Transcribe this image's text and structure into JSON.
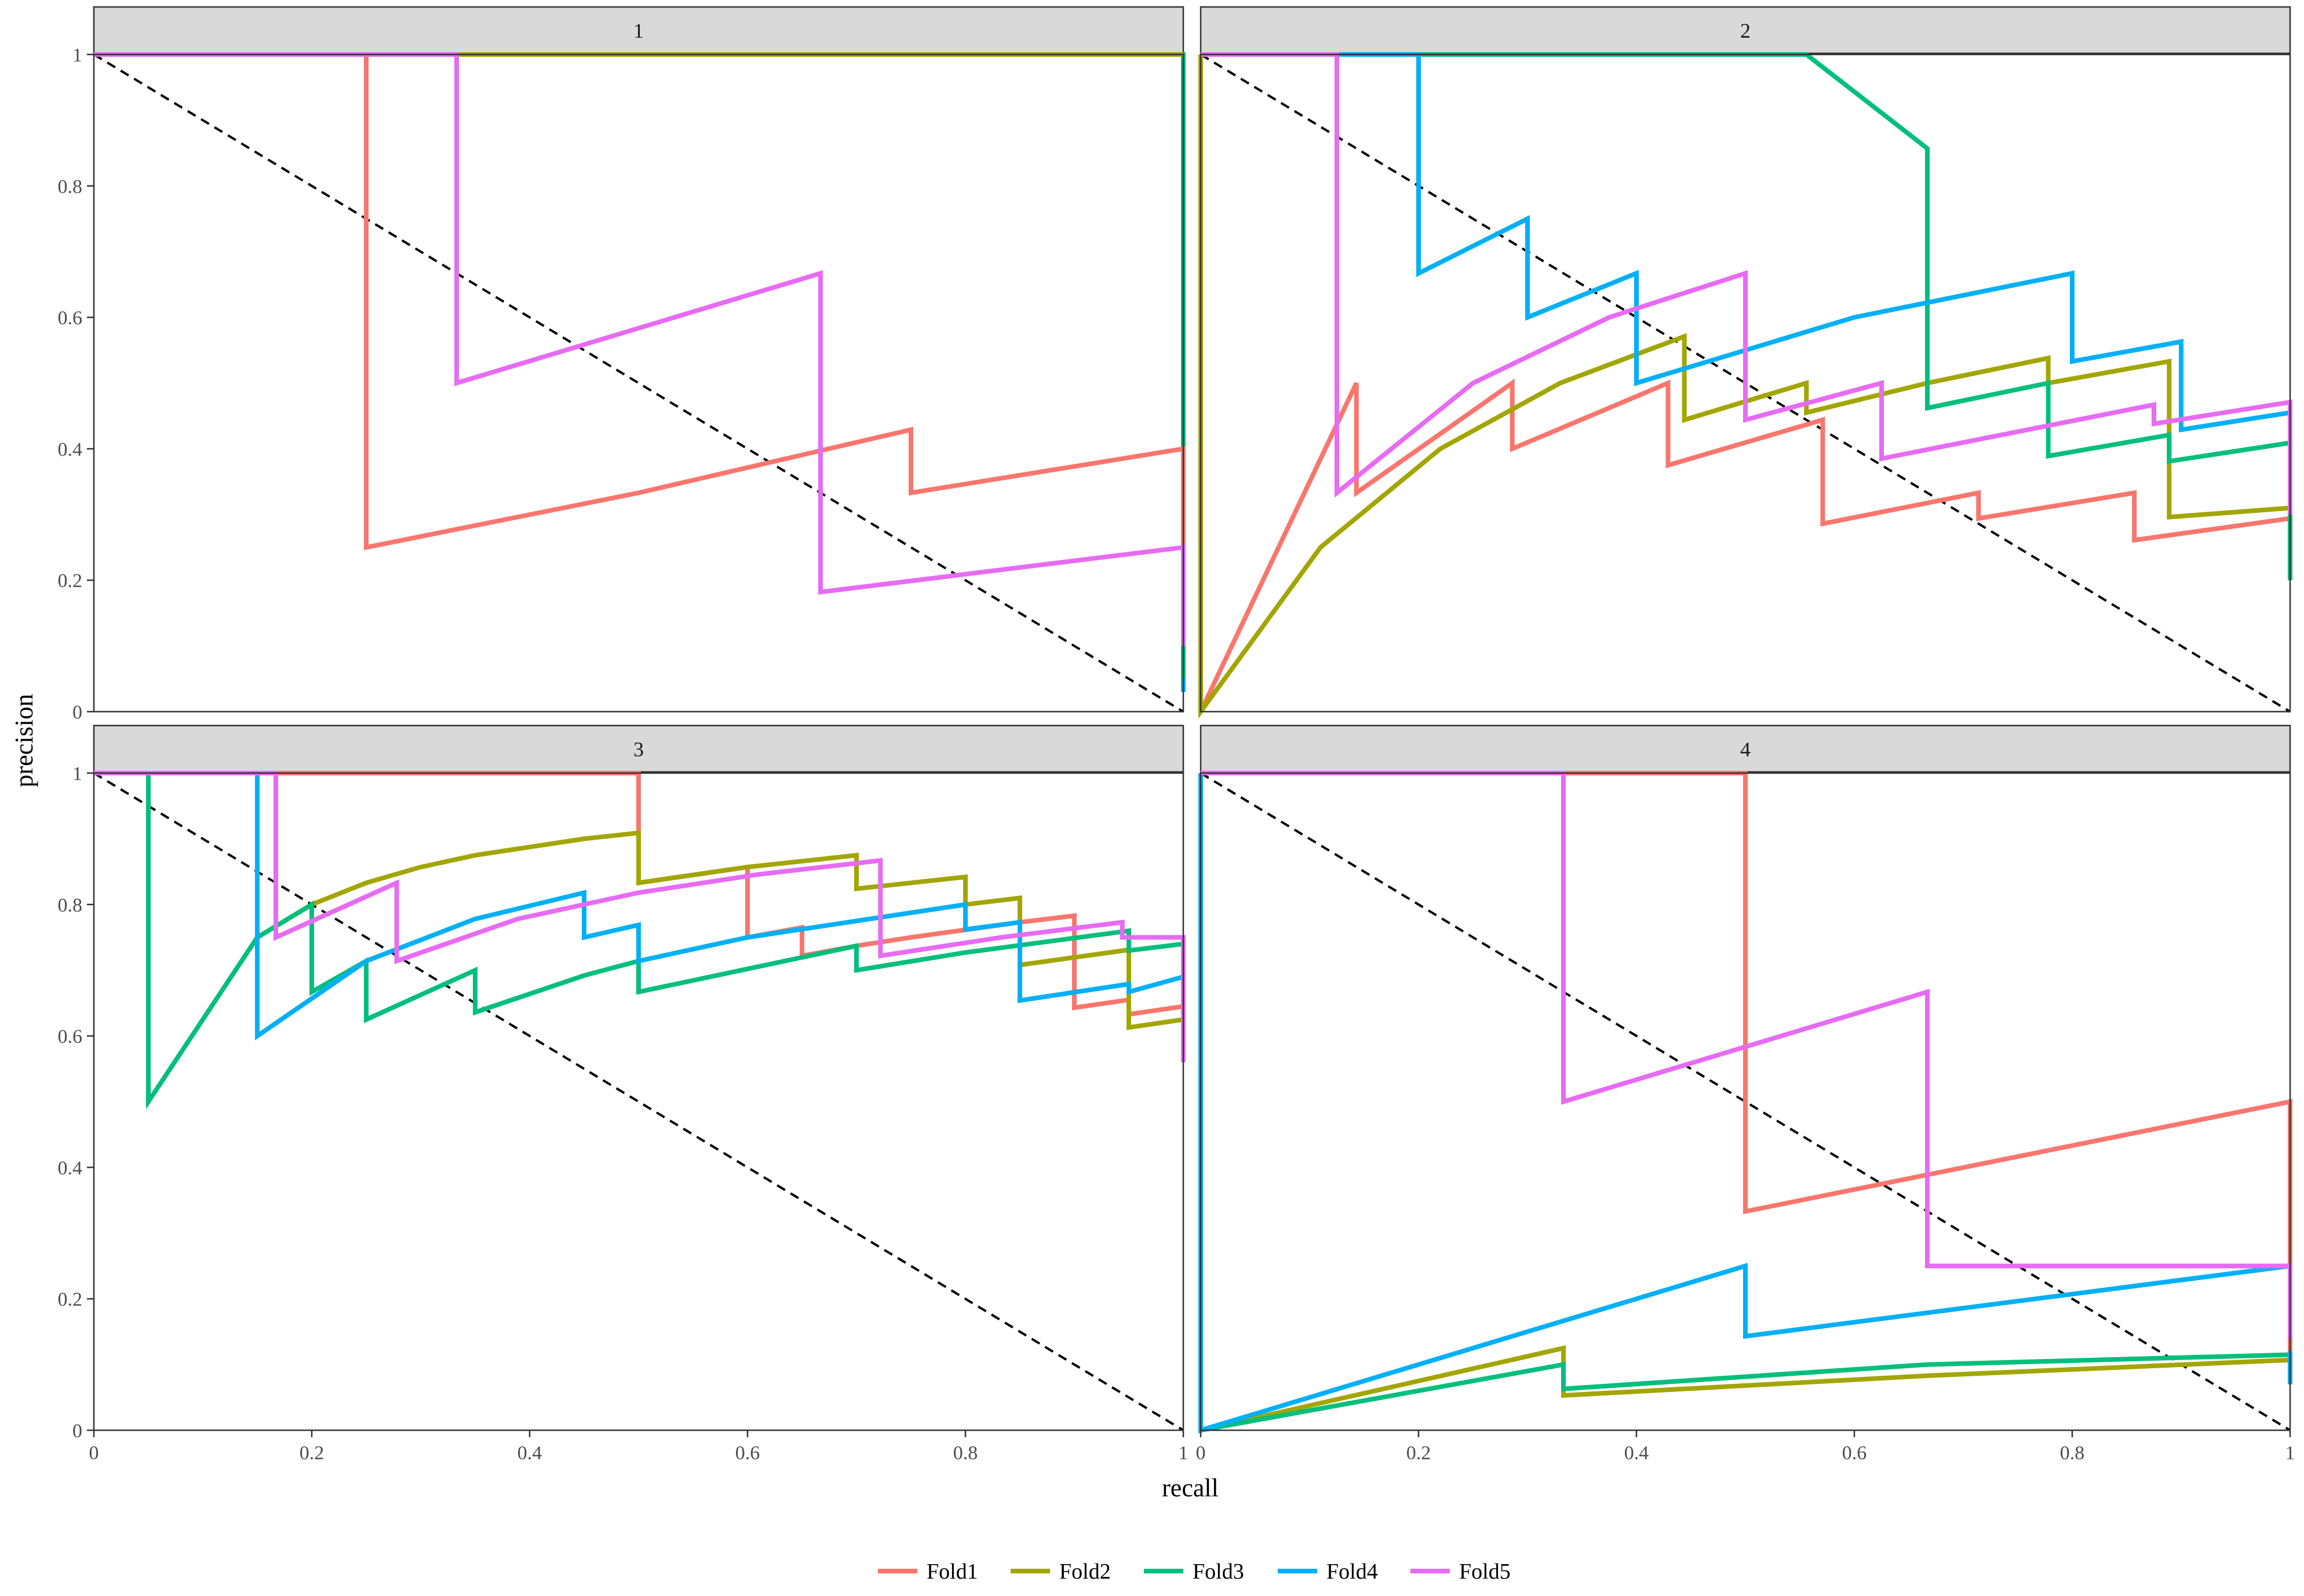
{
  "chart_data": {
    "type": "line",
    "xlabel": "recall",
    "ylabel": "precision",
    "xlim": [
      0,
      1
    ],
    "ylim": [
      0,
      1
    ],
    "x_ticks": [
      "0",
      "0.2",
      "0.4",
      "0.6",
      "0.8",
      "1"
    ],
    "y_ticks": [
      "0",
      "0.2",
      "0.4",
      "0.6",
      "0.8",
      "1"
    ],
    "grid": false,
    "legend_position": "bottom",
    "reference_line": {
      "style": "dashed",
      "color": "#000000",
      "points": [
        [
          0,
          1
        ],
        [
          1,
          0
        ]
      ]
    },
    "series_colors": {
      "Fold1": "#F8766D",
      "Fold2": "#A3A500",
      "Fold3": "#00BF7D",
      "Fold4": "#00B0F6",
      "Fold5": "#E76BF3"
    },
    "legend": [
      "Fold1",
      "Fold2",
      "Fold3",
      "Fold4",
      "Fold5"
    ],
    "panels": [
      {
        "strip": "1",
        "series": [
          {
            "name": "Fold4",
            "points": [
              [
                0,
                1
              ],
              [
                1,
                1
              ],
              [
                1,
                0.03
              ]
            ]
          },
          {
            "name": "Fold3",
            "points": [
              [
                0,
                1
              ],
              [
                1,
                1
              ],
              [
                1,
                0.05
              ]
            ]
          },
          {
            "name": "Fold2",
            "points": [
              [
                0,
                1
              ],
              [
                1,
                1
              ]
            ]
          },
          {
            "name": "Fold1",
            "points": [
              [
                0,
                1
              ],
              [
                0.25,
                1
              ],
              [
                0.25,
                0.25
              ],
              [
                0.5,
                0.333
              ],
              [
                0.75,
                0.429
              ],
              [
                0.75,
                0.333
              ],
              [
                1,
                0.4
              ],
              [
                1,
                0.22
              ]
            ]
          },
          {
            "name": "Fold5",
            "points": [
              [
                0,
                1
              ],
              [
                0.333,
                1
              ],
              [
                0.333,
                0.5
              ],
              [
                0.667,
                0.667
              ],
              [
                0.667,
                0.182
              ],
              [
                1,
                0.25
              ],
              [
                1,
                0.1
              ]
            ]
          }
        ]
      },
      {
        "strip": "2",
        "series": [
          {
            "name": "Fold1",
            "points": [
              [
                0,
                0
              ],
              [
                0.143,
                0.5
              ],
              [
                0.143,
                0.333
              ],
              [
                0.286,
                0.5
              ],
              [
                0.286,
                0.4
              ],
              [
                0.429,
                0.5
              ],
              [
                0.429,
                0.375
              ],
              [
                0.571,
                0.444
              ],
              [
                0.571,
                0.286
              ],
              [
                0.714,
                0.333
              ],
              [
                0.714,
                0.294
              ],
              [
                0.857,
                0.333
              ],
              [
                0.857,
                0.261
              ],
              [
                1,
                0.294
              ],
              [
                1,
                0.21
              ]
            ]
          },
          {
            "name": "Fold2",
            "points": [
              [
                0,
                0
              ],
              [
                0,
                1
              ],
              [
                0,
                0
              ],
              [
                0.11,
                0.25
              ],
              [
                0.22,
                0.4
              ],
              [
                0.33,
                0.5
              ],
              [
                0.444,
                0.571
              ],
              [
                0.444,
                0.444
              ],
              [
                0.556,
                0.5
              ],
              [
                0.556,
                0.455
              ],
              [
                0.667,
                0.5
              ],
              [
                0.778,
                0.538
              ],
              [
                0.778,
                0.5
              ],
              [
                0.889,
                0.533
              ],
              [
                0.889,
                0.296
              ],
              [
                1,
                0.31
              ],
              [
                1,
                0.25
              ]
            ]
          },
          {
            "name": "Fold3",
            "points": [
              [
                0,
                1
              ],
              [
                0.556,
                1
              ],
              [
                0.667,
                0.857
              ],
              [
                0.667,
                0.462
              ],
              [
                0.778,
                0.5
              ],
              [
                0.778,
                0.389
              ],
              [
                0.889,
                0.421
              ],
              [
                0.889,
                0.381
              ],
              [
                1,
                0.409
              ],
              [
                1,
                0.2
              ]
            ]
          },
          {
            "name": "Fold4",
            "points": [
              [
                0,
                1
              ],
              [
                0.2,
                1
              ],
              [
                0.2,
                0.667
              ],
              [
                0.3,
                0.75
              ],
              [
                0.3,
                0.6
              ],
              [
                0.4,
                0.667
              ],
              [
                0.4,
                0.5
              ],
              [
                0.6,
                0.6
              ],
              [
                0.8,
                0.667
              ],
              [
                0.8,
                0.533
              ],
              [
                0.9,
                0.563
              ],
              [
                0.9,
                0.429
              ],
              [
                1,
                0.455
              ],
              [
                1,
                0.35
              ]
            ]
          },
          {
            "name": "Fold5",
            "points": [
              [
                0,
                1
              ],
              [
                0.125,
                1
              ],
              [
                0.125,
                0.333
              ],
              [
                0.25,
                0.5
              ],
              [
                0.375,
                0.6
              ],
              [
                0.5,
                0.667
              ],
              [
                0.5,
                0.444
              ],
              [
                0.625,
                0.5
              ],
              [
                0.625,
                0.385
              ],
              [
                0.875,
                0.467
              ],
              [
                0.875,
                0.438
              ],
              [
                1,
                0.471
              ],
              [
                1,
                0.3
              ]
            ]
          }
        ]
      },
      {
        "strip": "3",
        "series": [
          {
            "name": "Fold1",
            "points": [
              [
                0,
                1
              ],
              [
                0.5,
                1
              ],
              [
                0.5,
                0.833
              ],
              [
                0.6,
                0.857
              ],
              [
                0.6,
                0.75
              ],
              [
                0.65,
                0.765
              ],
              [
                0.65,
                0.722
              ],
              [
                0.7,
                0.737
              ],
              [
                0.75,
                0.75
              ],
              [
                0.85,
                0.773
              ],
              [
                0.9,
                0.783
              ],
              [
                0.9,
                0.643
              ],
              [
                0.95,
                0.655
              ],
              [
                0.95,
                0.633
              ],
              [
                1,
                0.645
              ],
              [
                1,
                0.57
              ]
            ]
          },
          {
            "name": "Fold2",
            "points": [
              [
                0,
                1
              ],
              [
                0.15,
                1
              ],
              [
                0.15,
                0.75
              ],
              [
                0.2,
                0.8
              ],
              [
                0.25,
                0.833
              ],
              [
                0.3,
                0.857
              ],
              [
                0.35,
                0.875
              ],
              [
                0.45,
                0.9
              ],
              [
                0.5,
                0.909
              ],
              [
                0.5,
                0.833
              ],
              [
                0.6,
                0.857
              ],
              [
                0.7,
                0.875
              ],
              [
                0.7,
                0.824
              ],
              [
                0.8,
                0.842
              ],
              [
                0.8,
                0.8
              ],
              [
                0.85,
                0.81
              ],
              [
                0.85,
                0.708
              ],
              [
                0.95,
                0.731
              ],
              [
                0.95,
                0.613
              ],
              [
                1,
                0.625
              ],
              [
                1,
                0.58
              ]
            ]
          },
          {
            "name": "Fold3",
            "points": [
              [
                0,
                1
              ],
              [
                0.05,
                1
              ],
              [
                0.05,
                0.5
              ],
              [
                0.15,
                0.75
              ],
              [
                0.2,
                0.8
              ],
              [
                0.2,
                0.667
              ],
              [
                0.25,
                0.714
              ],
              [
                0.25,
                0.625
              ],
              [
                0.35,
                0.7
              ],
              [
                0.35,
                0.636
              ],
              [
                0.45,
                0.692
              ],
              [
                0.5,
                0.714
              ],
              [
                0.5,
                0.667
              ],
              [
                0.7,
                0.737
              ],
              [
                0.7,
                0.7
              ],
              [
                0.8,
                0.727
              ],
              [
                0.95,
                0.76
              ],
              [
                0.95,
                0.73
              ],
              [
                1,
                0.74
              ],
              [
                1,
                0.6
              ]
            ]
          },
          {
            "name": "Fold4",
            "points": [
              [
                0,
                1
              ],
              [
                0.15,
                1
              ],
              [
                0.15,
                0.6
              ],
              [
                0.25,
                0.714
              ],
              [
                0.35,
                0.778
              ],
              [
                0.45,
                0.818
              ],
              [
                0.45,
                0.75
              ],
              [
                0.5,
                0.769
              ],
              [
                0.5,
                0.714
              ],
              [
                0.6,
                0.75
              ],
              [
                0.8,
                0.8
              ],
              [
                0.8,
                0.762
              ],
              [
                0.85,
                0.773
              ],
              [
                0.85,
                0.654
              ],
              [
                0.95,
                0.679
              ],
              [
                0.95,
                0.667
              ],
              [
                1,
                0.69
              ],
              [
                1,
                0.6
              ]
            ]
          },
          {
            "name": "Fold5",
            "points": [
              [
                0,
                1
              ],
              [
                0.167,
                1
              ],
              [
                0.167,
                0.75
              ],
              [
                0.278,
                0.833
              ],
              [
                0.278,
                0.714
              ],
              [
                0.389,
                0.778
              ],
              [
                0.5,
                0.818
              ],
              [
                0.611,
                0.846
              ],
              [
                0.722,
                0.867
              ],
              [
                0.722,
                0.722
              ],
              [
                0.833,
                0.75
              ],
              [
                0.944,
                0.773
              ],
              [
                0.944,
                0.75
              ],
              [
                1,
                0.75
              ],
              [
                1,
                0.56
              ]
            ]
          }
        ]
      },
      {
        "strip": "4",
        "series": [
          {
            "name": "Fold2",
            "points": [
              [
                0,
                1
              ],
              [
                0,
                0
              ],
              [
                0.333,
                0.125
              ],
              [
                0.333,
                0.053
              ],
              [
                0.667,
                0.083
              ],
              [
                1,
                0.107
              ],
              [
                1,
                0.07
              ]
            ]
          },
          {
            "name": "Fold3",
            "points": [
              [
                0,
                1
              ],
              [
                0,
                0
              ],
              [
                0.333,
                0.1
              ],
              [
                0.333,
                0.063
              ],
              [
                0.667,
                0.1
              ],
              [
                1,
                0.115
              ],
              [
                1,
                0.08
              ]
            ]
          },
          {
            "name": "Fold4",
            "points": [
              [
                0,
                1
              ],
              [
                0,
                0
              ],
              [
                0.5,
                0.25
              ],
              [
                0.5,
                0.143
              ],
              [
                1,
                0.25
              ],
              [
                1,
                0.07
              ]
            ]
          },
          {
            "name": "Fold1",
            "points": [
              [
                0,
                1
              ],
              [
                0.5,
                1
              ],
              [
                0.5,
                0.333
              ],
              [
                1,
                0.5
              ],
              [
                1,
                0.12
              ]
            ]
          },
          {
            "name": "Fold5",
            "points": [
              [
                0,
                1
              ],
              [
                0.333,
                1
              ],
              [
                0.333,
                0.5
              ],
              [
                0.667,
                0.667
              ],
              [
                0.667,
                0.25
              ],
              [
                1,
                0.25
              ],
              [
                1,
                0.14
              ]
            ]
          }
        ]
      }
    ]
  }
}
